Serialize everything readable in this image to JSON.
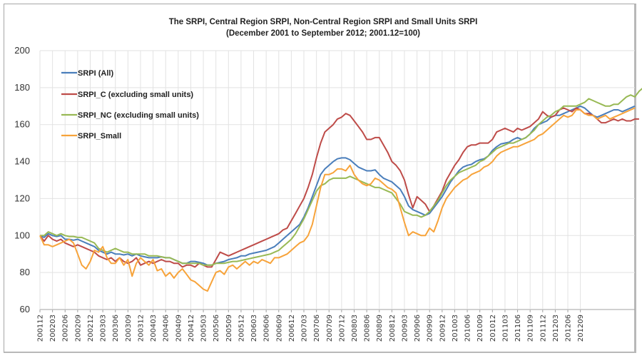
{
  "chart_data": {
    "type": "line",
    "title": "The SRPI, Central Region SRPI, Non-Central Region SRPI and Small Units SRPI",
    "subtitle": "(December 2001 to September 2012; 2001.12=100)",
    "xlabel": "",
    "ylabel": "",
    "ylim": [
      60,
      200
    ],
    "yticks": [
      60,
      80,
      100,
      120,
      140,
      160,
      180,
      200
    ],
    "grid": true,
    "legend_position": "top-left",
    "x_start": "2001-12",
    "x_end": "2012-09",
    "xtick_labels": [
      "200112",
      "200203",
      "200206",
      "200209",
      "200212",
      "200303",
      "200306",
      "200309",
      "200312",
      "200403",
      "200406",
      "200409",
      "200412",
      "200503",
      "200506",
      "200509",
      "200512",
      "200603",
      "200606",
      "200609",
      "200612",
      "200703",
      "200706",
      "200709",
      "200712",
      "200803",
      "200806",
      "200809",
      "200812",
      "200903",
      "200906",
      "200909",
      "200912",
      "201003",
      "201006",
      "201009",
      "201012",
      "201103",
      "201106",
      "201109",
      "201112",
      "201203",
      "201206",
      "201209"
    ],
    "series": [
      {
        "name": "SRPI (All)",
        "color": "#4a7ebb",
        "values": [
          100,
          99,
          101,
          100,
          99.5,
          100,
          98,
          98,
          97.5,
          98,
          97,
          96,
          95,
          94,
          92,
          91,
          90,
          91,
          90,
          90,
          89.5,
          90,
          89,
          90,
          89,
          88.5,
          88,
          88,
          88,
          88.5,
          88,
          88,
          87,
          86,
          85,
          85,
          86,
          86,
          85.5,
          85,
          84,
          84,
          85,
          85.5,
          86,
          87,
          87.5,
          88,
          89,
          89,
          90,
          90.5,
          91,
          91.5,
          92,
          93,
          94,
          96,
          98,
          100,
          102,
          104,
          106,
          110,
          115,
          121,
          127,
          133,
          136,
          138,
          140,
          141.5,
          142,
          142,
          141,
          139,
          137,
          136,
          135,
          135,
          135.5,
          133,
          131,
          130,
          129,
          127,
          125,
          121,
          116,
          114,
          113,
          112,
          111,
          112,
          115,
          118,
          121,
          125,
          129,
          132,
          135,
          137,
          138,
          138.5,
          140,
          141,
          141.5,
          143,
          146,
          148,
          149.5,
          150,
          150.5,
          152,
          153,
          152,
          153,
          155,
          158,
          160,
          161,
          162,
          164,
          165,
          165,
          166,
          167,
          168,
          169,
          170,
          169,
          167,
          165,
          164,
          165,
          166,
          167,
          168,
          168,
          167,
          168,
          169,
          170
        ]
      },
      {
        "name": "SRPI_C (excluding small units)",
        "color": "#be4b48",
        "values": [
          100,
          97,
          100,
          98,
          97,
          98,
          96,
          95,
          94,
          95,
          94,
          93,
          92,
          91,
          89,
          88,
          87,
          88,
          86,
          88,
          86,
          85,
          86,
          88,
          84,
          85,
          86,
          85,
          86,
          87,
          86,
          86,
          85,
          85,
          83,
          84,
          84,
          83,
          85,
          84,
          83,
          83,
          87,
          91,
          90,
          89,
          90,
          91,
          92,
          93,
          94,
          95,
          96,
          97,
          98,
          99,
          100,
          101,
          103,
          104,
          108,
          112,
          116,
          120,
          126,
          133,
          142,
          150,
          156,
          158,
          160,
          163,
          164,
          166,
          165,
          162,
          159,
          156,
          152,
          152,
          153,
          153,
          149,
          145,
          140,
          138,
          135,
          130,
          122,
          115,
          121,
          119,
          117,
          113,
          116,
          120,
          124,
          130,
          134,
          138,
          141,
          145,
          148,
          149,
          149,
          150,
          150,
          150,
          152,
          156,
          157,
          158,
          157,
          156,
          158,
          157,
          158,
          159,
          161,
          163,
          167,
          165,
          164,
          165,
          168,
          169,
          168,
          167,
          169,
          168,
          166,
          166,
          165,
          163,
          161,
          161,
          162,
          163,
          162,
          163,
          162,
          162,
          163,
          163
        ]
      },
      {
        "name": "SRPI_NC (excluding small units)",
        "color": "#98b954",
        "values": [
          100,
          100,
          102,
          101,
          100,
          101,
          100,
          99.5,
          99.5,
          99,
          99,
          98,
          97,
          96,
          93,
          92,
          91,
          92,
          93,
          92,
          91,
          91,
          90,
          90,
          90,
          90,
          89,
          89,
          89,
          88.5,
          88,
          88,
          87,
          86,
          85,
          85,
          85,
          85,
          85,
          84,
          84,
          84,
          85,
          85,
          85,
          85.5,
          86,
          86,
          86.5,
          87,
          87.5,
          88,
          88.5,
          89,
          89.5,
          90,
          91,
          92,
          94,
          96,
          98,
          101,
          105,
          109,
          114,
          119,
          124,
          127,
          128,
          130,
          131,
          131,
          131,
          131,
          132,
          131,
          130,
          129,
          128,
          127,
          126,
          126,
          125,
          124,
          123,
          120,
          117,
          113,
          112,
          111,
          111,
          110,
          111,
          113,
          116,
          119,
          123,
          127,
          130,
          132,
          134,
          135,
          136,
          137,
          138,
          140,
          141,
          143,
          145,
          147,
          148,
          149,
          150,
          150,
          151,
          152,
          153,
          155,
          157,
          160,
          162,
          164,
          165,
          167,
          168,
          170,
          170,
          170,
          170,
          171,
          172,
          174,
          173,
          172,
          171,
          170,
          170,
          171,
          171,
          173,
          175,
          176,
          175,
          178,
          180
        ]
      },
      {
        "name": "SRPI_Small",
        "color": "#f7a33a",
        "values": [
          100,
          95,
          95,
          94,
          95,
          96,
          97,
          98,
          96,
          90,
          84,
          82,
          86,
          92,
          91,
          94,
          88,
          85,
          85,
          88,
          84,
          87,
          78,
          85,
          88,
          86,
          84,
          87,
          81,
          82,
          78,
          80,
          77,
          80,
          82,
          79,
          76,
          75,
          73,
          71,
          70,
          75,
          80,
          81,
          79,
          83,
          84,
          82,
          84,
          86,
          84,
          86,
          85,
          87,
          86,
          85,
          88,
          88,
          89,
          90,
          92,
          94,
          96,
          97,
          100,
          106,
          116,
          126,
          133,
          133,
          134,
          136,
          136,
          135,
          138,
          133,
          130,
          128,
          127,
          128,
          131,
          130,
          128,
          126,
          125,
          123,
          115,
          107,
          100,
          102,
          101,
          100,
          100,
          104,
          102,
          108,
          115,
          120,
          123,
          126,
          128,
          130,
          131,
          133,
          134,
          135,
          137,
          138,
          140,
          143,
          145,
          146,
          147,
          148,
          148,
          149,
          150,
          151,
          152,
          154,
          155,
          157,
          159,
          161,
          163,
          165,
          164,
          165,
          168,
          168,
          166,
          165,
          165,
          163,
          164,
          165,
          163,
          164,
          165,
          166,
          167,
          168,
          169
        ]
      }
    ]
  }
}
